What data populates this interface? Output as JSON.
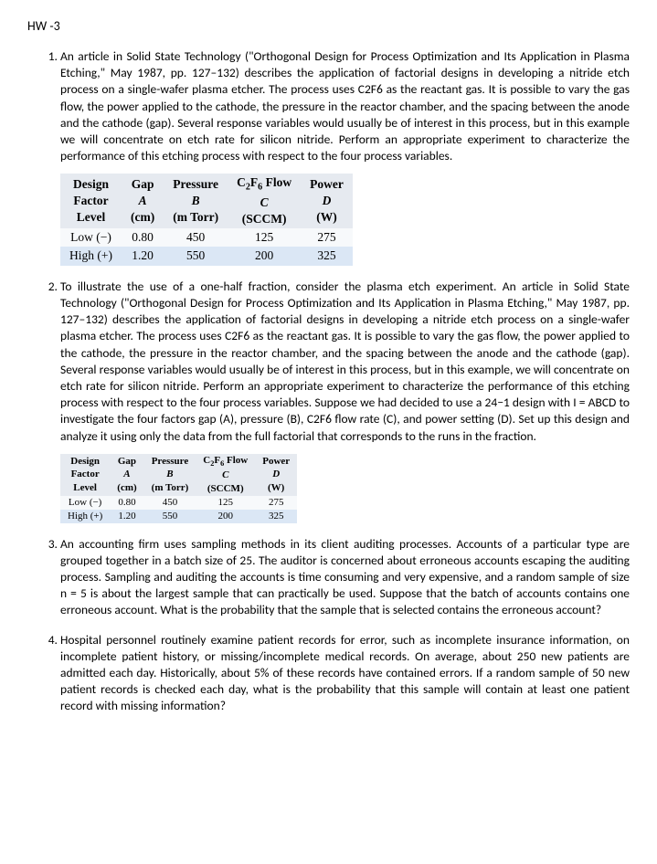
{
  "title": "HW -3",
  "items": [
    {
      "text": "An article in Solid State Technology (\"Orthogonal Design for Process Optimization and Its Application in Plasma Etching,\" May 1987, pp. 127–132) describes the application of factorial designs in developing a nitride etch process on a single-wafer plasma etcher. The process uses C2F6 as the reactant gas. It is possible to vary the gas flow, the power applied to the cathode, the pressure in the reactor chamber, and the spacing between the anode and the cathode (gap). Several response variables would usually be of interest in this process, but in this example we will concentrate on etch rate for silicon nitride. Perform an appropriate experiment to characterize the performance of this etching process with respect to the four process variables."
    },
    {
      "text": "To illustrate the use of a one-half fraction, consider the plasma etch experiment. An article in Solid State Technology (\"Orthogonal Design for Process Optimization and Its Application in Plasma Etching,\" May 1987, pp. 127–132) describes the application of factorial designs in developing a nitride etch process on a single-wafer plasma etcher. The process uses C2F6 as the reactant gas. It is possible to vary the gas flow, the power applied to the cathode, the pressure in the reactor chamber, and the spacing between the anode and the cathode (gap). Several response variables would usually be of interest in this process, but in this example, we will concentrate on etch rate for silicon nitride. Perform an appropriate experiment to characterize the performance of this etching process with respect to the four process variables. Suppose we had decided to use a 24−1 design with I = ABCD to investigate the four factors gap (A), pressure (B), C2F6 flow rate (C), and power setting (D). Set up this design and analyze it using only the data from the full factorial that corresponds to the runs in the fraction."
    },
    {
      "text": "An accounting firm uses sampling methods in its client auditing processes. Accounts of a particular type are grouped together in a batch size of 25. The auditor is concerned about erroneous accounts escaping the auditing process. Sampling and auditing the accounts is time consuming and very expensive, and a random sample of size n = 5 is about the largest sample that can practically be used. Suppose that the batch of accounts contains one erroneous account. What is the probability that the sample that is selected contains the erroneous account?"
    },
    {
      "text": "Hospital personnel routinely examine patient records for error, such as incomplete insurance information, on incomplete patient history, or missing/incomplete medical records. On average, about 250 new patients are admitted each day. Historically, about 5% of these records have contained errors. If a random sample of 50 new patient records is checked each day, what is the probability that this sample will contain at least one patient record with missing information?"
    }
  ],
  "table": {
    "head1": [
      "Design Factor Level",
      "Gap",
      "Pressure",
      "C₂F₆ Flow",
      "Power"
    ],
    "head2": [
      "",
      "A",
      "B",
      "C",
      "D"
    ],
    "units": [
      "",
      "(cm)",
      "(m Torr)",
      "(SCCM)",
      "(W)"
    ],
    "rows": [
      [
        "Low (−)",
        "0.80",
        "450",
        "125",
        "275"
      ],
      [
        "High (+)",
        "1.20",
        "550",
        "200",
        "325"
      ]
    ]
  }
}
